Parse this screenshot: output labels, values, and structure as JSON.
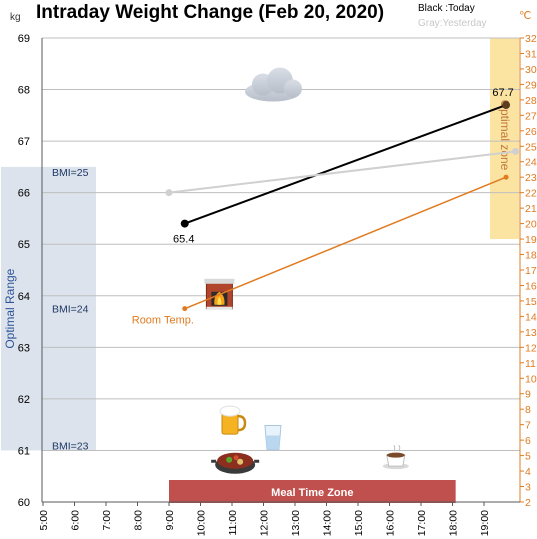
{
  "chart_data": {
    "type": "line",
    "title": "Intraday Weight Change (Feb 20, 2020)",
    "y_unit": "kg",
    "y2_unit": "℃",
    "legend": {
      "today": "Black :Today",
      "yesterday": "Gray:Yesterday"
    },
    "ylim": [
      60,
      69
    ],
    "y_ticks": [
      60,
      61,
      62,
      63,
      64,
      65,
      66,
      67,
      68,
      69
    ],
    "y2lim": [
      2,
      32
    ],
    "y2_ticks": [
      2,
      3,
      4,
      5,
      6,
      7,
      8,
      9,
      10,
      11,
      12,
      13,
      14,
      15,
      16,
      17,
      18,
      19,
      20,
      21,
      22,
      23,
      24,
      25,
      26,
      27,
      28,
      29,
      30,
      31,
      32
    ],
    "x_range": [
      5,
      20
    ],
    "x_ticks": [
      "5:00",
      "6:00",
      "7:00",
      "8:00",
      "9:00",
      "10:00",
      "11:00",
      "12:00",
      "13:00",
      "14:00",
      "15:00",
      "16:00",
      "17:00",
      "18:00",
      "19:00"
    ],
    "grid": true,
    "series": [
      {
        "role": "today",
        "color": "#000000",
        "points": [
          [
            9.5,
            65.4
          ],
          [
            19.7,
            67.7
          ]
        ]
      },
      {
        "role": "yesterday",
        "color": "#d0d0d0",
        "points": [
          [
            9.0,
            66.0
          ],
          [
            20.0,
            66.8
          ]
        ]
      },
      {
        "name": "Room Temp.",
        "color": "#e07b20",
        "axis": "right",
        "points": [
          [
            9.5,
            14.5
          ],
          [
            19.7,
            23.0
          ]
        ]
      }
    ],
    "data_labels": {
      "start": "65.4",
      "end": "67.7"
    },
    "regions": {
      "optimal_range": {
        "label": "Optimal Range",
        "y_from": 61,
        "y_to": 66.5,
        "color": "#dce3ec"
      },
      "optimal_zone": {
        "label": "Optimal zone",
        "y2_from": 19,
        "y2_to": 32,
        "color": "#fbe3a2"
      },
      "meal_time": {
        "label": "Meal Time Zone",
        "x_from": 9,
        "x_to": 18.1,
        "color": "#c0504d"
      }
    },
    "bmi_labels": [
      {
        "text": "BMI=25",
        "y": 66.4
      },
      {
        "text": "BMI=24",
        "y": 63.75
      },
      {
        "text": "BMI=23",
        "y": 61.1
      }
    ],
    "icons": [
      {
        "name": "cloud-icon",
        "x": 12.3,
        "y": 68.0
      },
      {
        "name": "fireplace-icon",
        "x": 10.6,
        "y": 64.0
      },
      {
        "name": "beer-icon",
        "x": 11.0,
        "y": 61.55
      },
      {
        "name": "water-glass-icon",
        "x": 12.3,
        "y": 61.25
      },
      {
        "name": "hotpot-icon",
        "x": 11.1,
        "y": 60.8
      },
      {
        "name": "coffee-cup-icon",
        "x": 16.2,
        "y": 60.85
      }
    ]
  }
}
